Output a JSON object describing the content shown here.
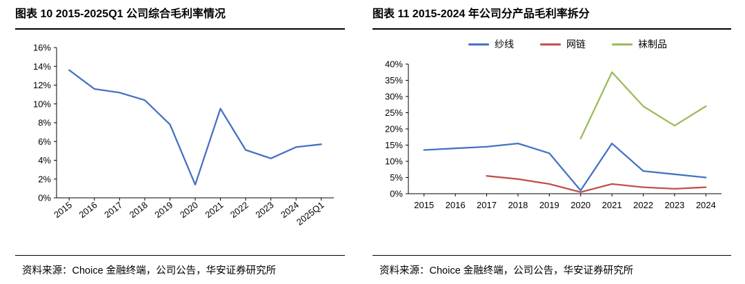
{
  "panels": [
    {
      "source": "资料来源：Choice 金融终端，公司公告，华安证券研究所"
    },
    {
      "source": "资料来源：Choice 金融终端，公司公告，华安证券研究所"
    }
  ],
  "chart_data": [
    {
      "type": "line",
      "title": "图表 10 2015-2025Q1 公司综合毛利率情况",
      "categories": [
        "2015",
        "2016",
        "2017",
        "2018",
        "2019",
        "2020",
        "2021",
        "2022",
        "2023",
        "2024",
        "2025Q1"
      ],
      "series": [
        {
          "name": "综合毛利率",
          "color": "#4472C4",
          "values": [
            13.6,
            11.6,
            11.2,
            10.4,
            7.8,
            1.4,
            9.5,
            5.1,
            4.2,
            5.4,
            5.7
          ]
        }
      ],
      "xlabel": "",
      "ylabel": "",
      "ylim": [
        0,
        16
      ],
      "ytick_step": 2,
      "grid": false,
      "legend": "none",
      "x_tick_rotation": -38
    },
    {
      "type": "line",
      "title": "图表 11 2015-2024 年公司分产品毛利率拆分",
      "categories": [
        "2015",
        "2016",
        "2017",
        "2018",
        "2019",
        "2020",
        "2021",
        "2022",
        "2023",
        "2024"
      ],
      "series": [
        {
          "name": "纱线",
          "color": "#4472C4",
          "values": [
            13.5,
            14.0,
            14.5,
            15.5,
            12.5,
            1.0,
            15.5,
            7.0,
            6.0,
            5.0
          ]
        },
        {
          "name": "网链",
          "color": "#C0504D",
          "values": [
            null,
            null,
            5.5,
            4.5,
            3.0,
            0.5,
            3.0,
            2.0,
            1.5,
            2.0
          ]
        },
        {
          "name": "袜制品",
          "color": "#9BBB59",
          "values": [
            null,
            null,
            null,
            null,
            null,
            17.0,
            37.5,
            27.0,
            21.0,
            27.0
          ]
        }
      ],
      "xlabel": "",
      "ylabel": "",
      "ylim": [
        0,
        40
      ],
      "ytick_step": 5,
      "grid": false,
      "legend": "top",
      "x_tick_rotation": 0
    }
  ]
}
